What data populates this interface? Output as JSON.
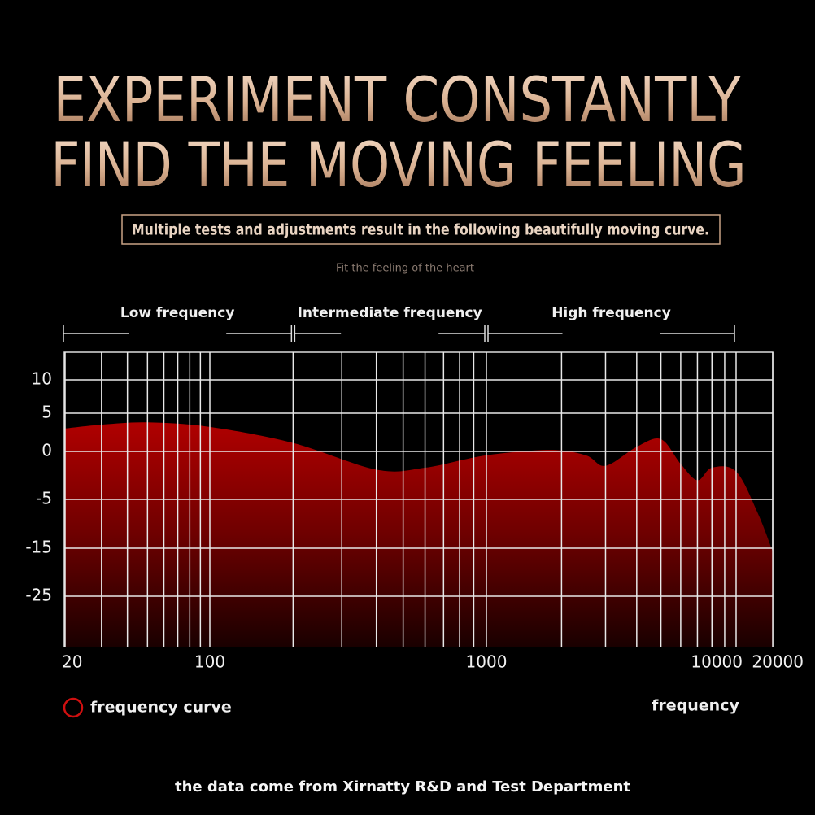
{
  "chart_data": {
    "type": "area",
    "title": [
      "EXPERIMENT CONSTANTLY",
      "FIND THE MOVING FEELING"
    ],
    "subtitle": "Multiple tests and adjustments result in the following beautifully moving curve.",
    "tagline": "Fit the feeling of the heart",
    "footer": "the data come from Xirnatty R&D and Test Department",
    "xlabel": "frequency",
    "log_x": true,
    "grid": true,
    "x": [
      20,
      30,
      50,
      100,
      200,
      400,
      600,
      1000,
      1800,
      2500,
      3000,
      4000,
      5000,
      6000,
      7000,
      8000,
      10000,
      15000,
      20000
    ],
    "series": [
      {
        "name": "frequency curve",
        "color": "#a00000",
        "values": [
          3.0,
          3.5,
          3.8,
          3.2,
          1.1,
          -1.9,
          -1.7,
          -0.4,
          0.2,
          -0.4,
          -1.5,
          0.6,
          1.6,
          -1.3,
          -3.0,
          -1.7,
          -2.1,
          -7.7,
          -15.7
        ]
      }
    ],
    "xlim": [
      20,
      20000
    ],
    "xticks": [
      20,
      100,
      1000,
      10000,
      20000
    ],
    "x_minor_ticks": [
      30,
      40,
      50,
      60,
      70,
      80,
      90,
      200,
      300,
      400,
      500,
      600,
      700,
      800,
      900,
      2000,
      3000,
      4000,
      5000,
      6000,
      7000,
      8000,
      9000
    ],
    "ylim": [
      -35,
      15
    ],
    "yticks": [
      -25,
      -15,
      -5,
      0,
      5,
      10
    ],
    "bands": [
      {
        "label": "Low frequency",
        "from": 20,
        "to": 200
      },
      {
        "label": "Intermediate frequency",
        "from": 200,
        "to": 1000
      },
      {
        "label": "High frequency",
        "from": 1000,
        "to": 10000
      }
    ]
  }
}
